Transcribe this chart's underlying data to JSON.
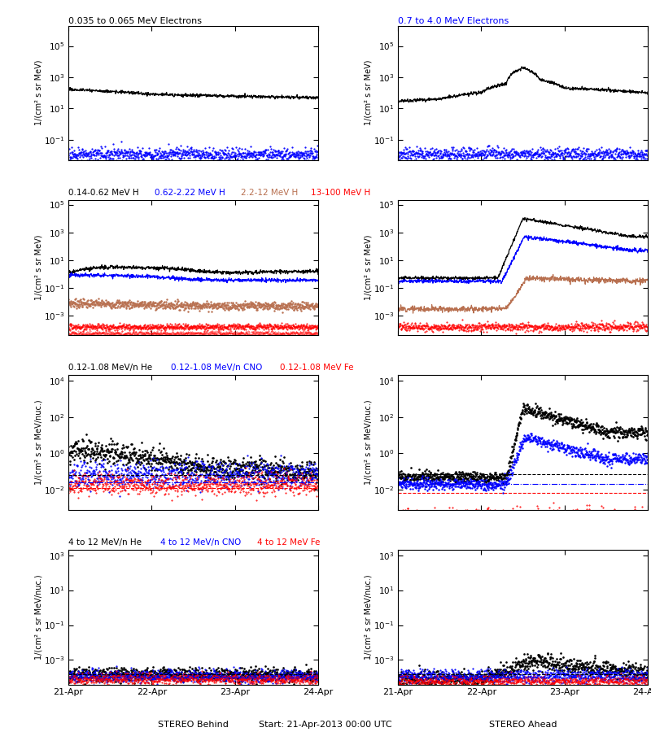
{
  "title_left": "0.035 to 0.065 MeV Electrons",
  "title_right": "0.7 to 4.0 MeV Electrons",
  "title_row2_labels": [
    "0.14-0.62 MeV H",
    "0.62-2.22 MeV H",
    "2.2-12 MeV H",
    "13-100 MeV H"
  ],
  "title_row2_colors": [
    "black",
    "blue",
    "#b87050",
    "red"
  ],
  "title_row3_labels": [
    "0.12-1.08 MeV/n He",
    "0.12-1.08 MeV/n CNO",
    "0.12-1.08 MeV Fe"
  ],
  "title_row3_colors": [
    "black",
    "blue",
    "red"
  ],
  "title_row4_labels": [
    "4 to 12 MeV/n He",
    "4 to 12 MeV/n CNO",
    "4 to 12 MeV Fe"
  ],
  "title_row4_colors": [
    "black",
    "blue",
    "red"
  ],
  "xlabel_left": "STEREO Behind",
  "xlabel_center": "Start: 21-Apr-2013 00:00 UTC",
  "xlabel_right": "STEREO Ahead",
  "ylabel_mev": "1/(cm² s sr MeV)",
  "ylabel_nuc": "1/(cm² s sr MeV/nuc.)",
  "xtick_labels": [
    "21-Apr",
    "22-Apr",
    "23-Apr",
    "24-Apr"
  ],
  "brown_color": "#b87050"
}
